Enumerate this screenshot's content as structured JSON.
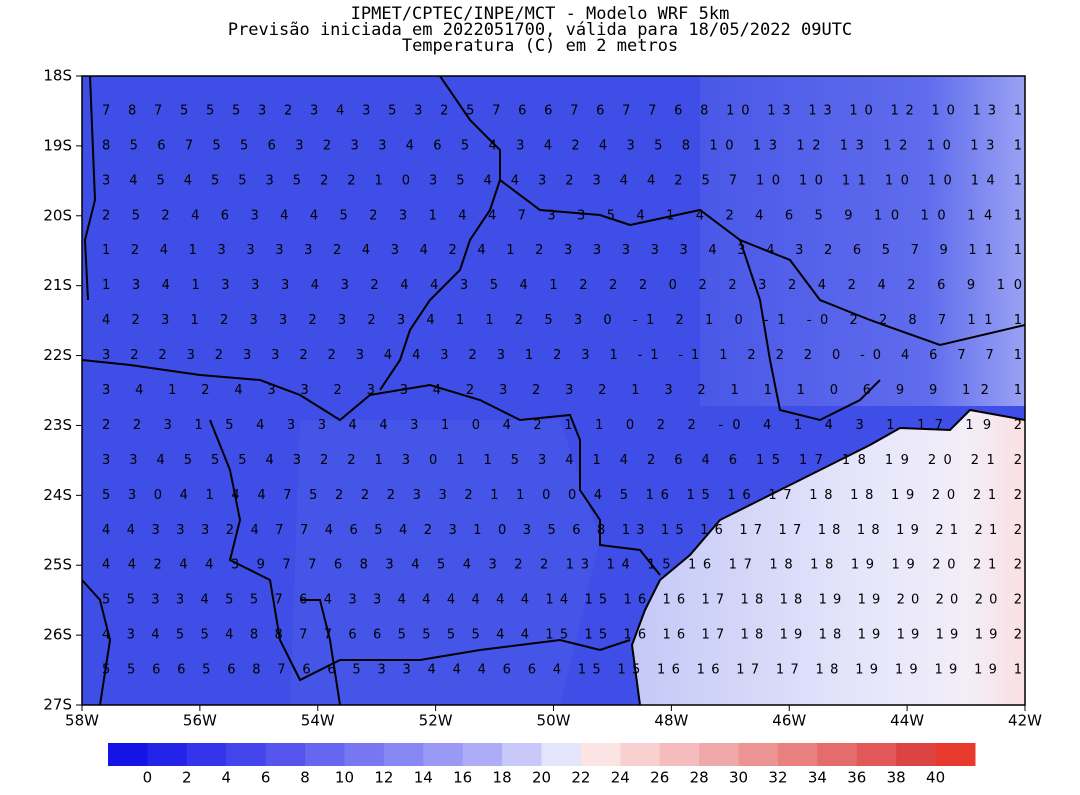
{
  "map": {
    "title": [
      "IPMET/CPTEC/INPE/MCT - Modelo WRF 5km",
      "Previsão iniciada em 2022051700, válida para 18/05/2022 09UTC",
      "Temperatura (C) em 2 metros"
    ],
    "xlim": [
      -58,
      -42
    ],
    "ylim": [
      -27,
      -18
    ],
    "xticks": [
      {
        "value": -58,
        "label": "58W"
      },
      {
        "value": -56,
        "label": "56W"
      },
      {
        "value": -54,
        "label": "54W"
      },
      {
        "value": -52,
        "label": "52W"
      },
      {
        "value": -50,
        "label": "50W"
      },
      {
        "value": -48,
        "label": "48W"
      },
      {
        "value": -46,
        "label": "46W"
      },
      {
        "value": -44,
        "label": "44W"
      },
      {
        "value": -42,
        "label": "42W"
      }
    ],
    "yticks": [
      {
        "value": -18,
        "label": "18S"
      },
      {
        "value": -19,
        "label": "19S"
      },
      {
        "value": -20,
        "label": "20S"
      },
      {
        "value": -21,
        "label": "21S"
      },
      {
        "value": -22,
        "label": "22S"
      },
      {
        "value": -23,
        "label": "23S"
      },
      {
        "value": -24,
        "label": "24S"
      },
      {
        "value": -25,
        "label": "25S"
      },
      {
        "value": -26,
        "label": "26S"
      },
      {
        "value": -27,
        "label": "27S"
      }
    ],
    "grid_rows": [
      "7 8 7 5 5 5 3 2 3 4 3 5 3 2 5 7 6 6 7 6 7 7 6 8 10 13 13 10 12 10 13 1",
      "8 5 6 7 5 5 6 3 2 3 3 4 6 5 4 3 4 2 4 3 5 8 10 13 12 13 12 10 13 1",
      "3 4 5 4 5 5 3 5 2 2 1 0 3 5 4 4 3 2 3 4 4 2 5 7 10 10 11 10 10 14 1",
      "2 5 2 4 6 3 4 4 5 2 3 1 4 4 7 3 3 5 4 1 4 2 4 6 5 9 10 10 14 1",
      "1 2 4 1 3 3 3 3 2 4 3 4 2 4 1 2 3 3 3 3 3 4 3 4 3 2 6 5 7 9 11 1",
      "1 3 4 1 3 3 3 4 3 2 4 4 3 5 4 1 2 2 2 0 2 2 3 2 4 2 4 2 6 9 10",
      "4 2 3 1 2 3 3 2 3 2 3 4 1 1 2 5 3 0 -1 2 1 0 -1 -0 2 2 8 7 11 1",
      "3 2 2 3 2 3 3 2 2 3 4 4 3 2 3 1 2 3 1 -1 -1 1 2 2 2 0 -0 4 6 7 7 1",
      "3 4 1 2 4 3 3 2 3 3 4 2 3 2 3 2 1 3 2 1 1 1 0 6 9 9 12 1",
      "2 2 3 1 5 4 3 3 4 4 3 1 0 4 2 1 1 0 2 2 -0 4 1 4 3 1 17 19 2",
      "3 3 4 5 5 5 4 3 2 2 1 3 0 1 1 5 3 4 1 4 2 6 4 6 15 17 18 19 20 21 2",
      "5 3 0 4 1 4 4 7 5 2 2 2 3 3 2 1 1 0 0 4 5 16 15 16 17 18 18 19 20 21 2",
      "4 4 3 3 3 2 4 7 7 4 6 5 4 2 3 1 0 3 5 6 8 13 15 16 17 17 18 18 19 21 21 2",
      "4 4 2 4 4 3 9 7 7 6 8 3 4 5 4 3 2 2 13 14 15 16 17 18 18 19 19 20 21 2",
      "5 5 3 3 4 5 5 7 6 4 3 3 4 4 4 4 4 4 14 15 16 16 17 18 18 19 19 20 20 20 2",
      "4 3 4 5 5 4 8 8 7 7 6 6 5 5 5 5 4 4 15 15 16 16 17 18 19 18 19 19 19 19 2",
      "5 5 6 6 5 6 8 7 6 6 5 3 3 4 4 4 6 6 4 15 15 16 16 17 17 18 19 19 19 19 1"
    ],
    "colorbar": {
      "colors": [
        "#1414e6",
        "#2424e8",
        "#3434ea",
        "#4444ec",
        "#5555ee",
        "#6666f0",
        "#7777f2",
        "#8888f4",
        "#9a9af6",
        "#acacf8",
        "#c8c8fa",
        "#e4e4fc",
        "#fce4e4",
        "#f8d0d0",
        "#f4bcbc",
        "#f0a8a8",
        "#ec9494",
        "#e88080",
        "#e46c6c",
        "#e05858",
        "#dc4444",
        "#e83a2c"
      ],
      "labels": [
        0,
        2,
        4,
        6,
        8,
        10,
        12,
        14,
        16,
        18,
        20,
        22,
        24,
        26,
        28,
        30,
        32,
        34,
        36,
        38,
        40
      ]
    }
  }
}
